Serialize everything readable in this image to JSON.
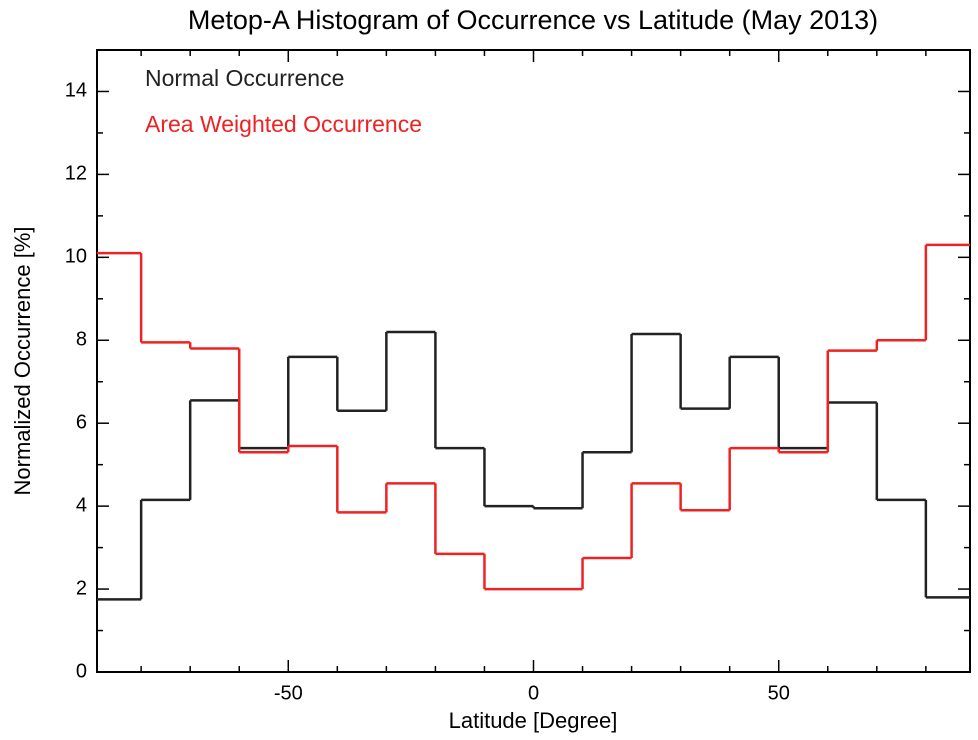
{
  "chart_data": {
    "type": "histogram",
    "title": "Metop-A Histogram of Occurrence vs Latitude (May 2013)",
    "x_label": "Latitude [Degree]",
    "y_label": "Normalized Occurrence [%]",
    "bins": [
      -90,
      -80,
      -70,
      -60,
      -50,
      -40,
      -30,
      -20,
      -10,
      0,
      10,
      20,
      30,
      40,
      50,
      60,
      70,
      80,
      90
    ],
    "series": [
      {
        "name": "Normal Occurrence",
        "color": "#222222",
        "values": [
          1.75,
          4.15,
          6.55,
          5.4,
          7.6,
          6.3,
          8.2,
          5.4,
          4.0,
          3.95,
          5.3,
          8.15,
          6.35,
          7.6,
          5.4,
          6.5,
          4.15,
          1.8
        ]
      },
      {
        "name": "Area Weighted Occurrence",
        "color": "#ee2222",
        "values": [
          10.1,
          7.95,
          7.8,
          5.3,
          5.45,
          3.85,
          4.55,
          2.85,
          2.0,
          2.0,
          2.75,
          4.55,
          3.9,
          5.4,
          5.3,
          7.75,
          8.0,
          10.3
        ]
      }
    ],
    "xlim": [
      -89,
      89
    ],
    "xticks": [
      -50,
      0,
      50
    ],
    "xminorticks": [
      -80,
      -70,
      -60,
      -40,
      -30,
      -20,
      -10,
      10,
      20,
      30,
      40,
      60,
      70,
      80
    ],
    "ylim": [
      0,
      15
    ],
    "yticks": [
      0,
      2,
      4,
      6,
      8,
      10,
      12,
      14
    ],
    "yminorticks": [
      1,
      3,
      5,
      7,
      9,
      11,
      13
    ],
    "legend": "top-left"
  }
}
